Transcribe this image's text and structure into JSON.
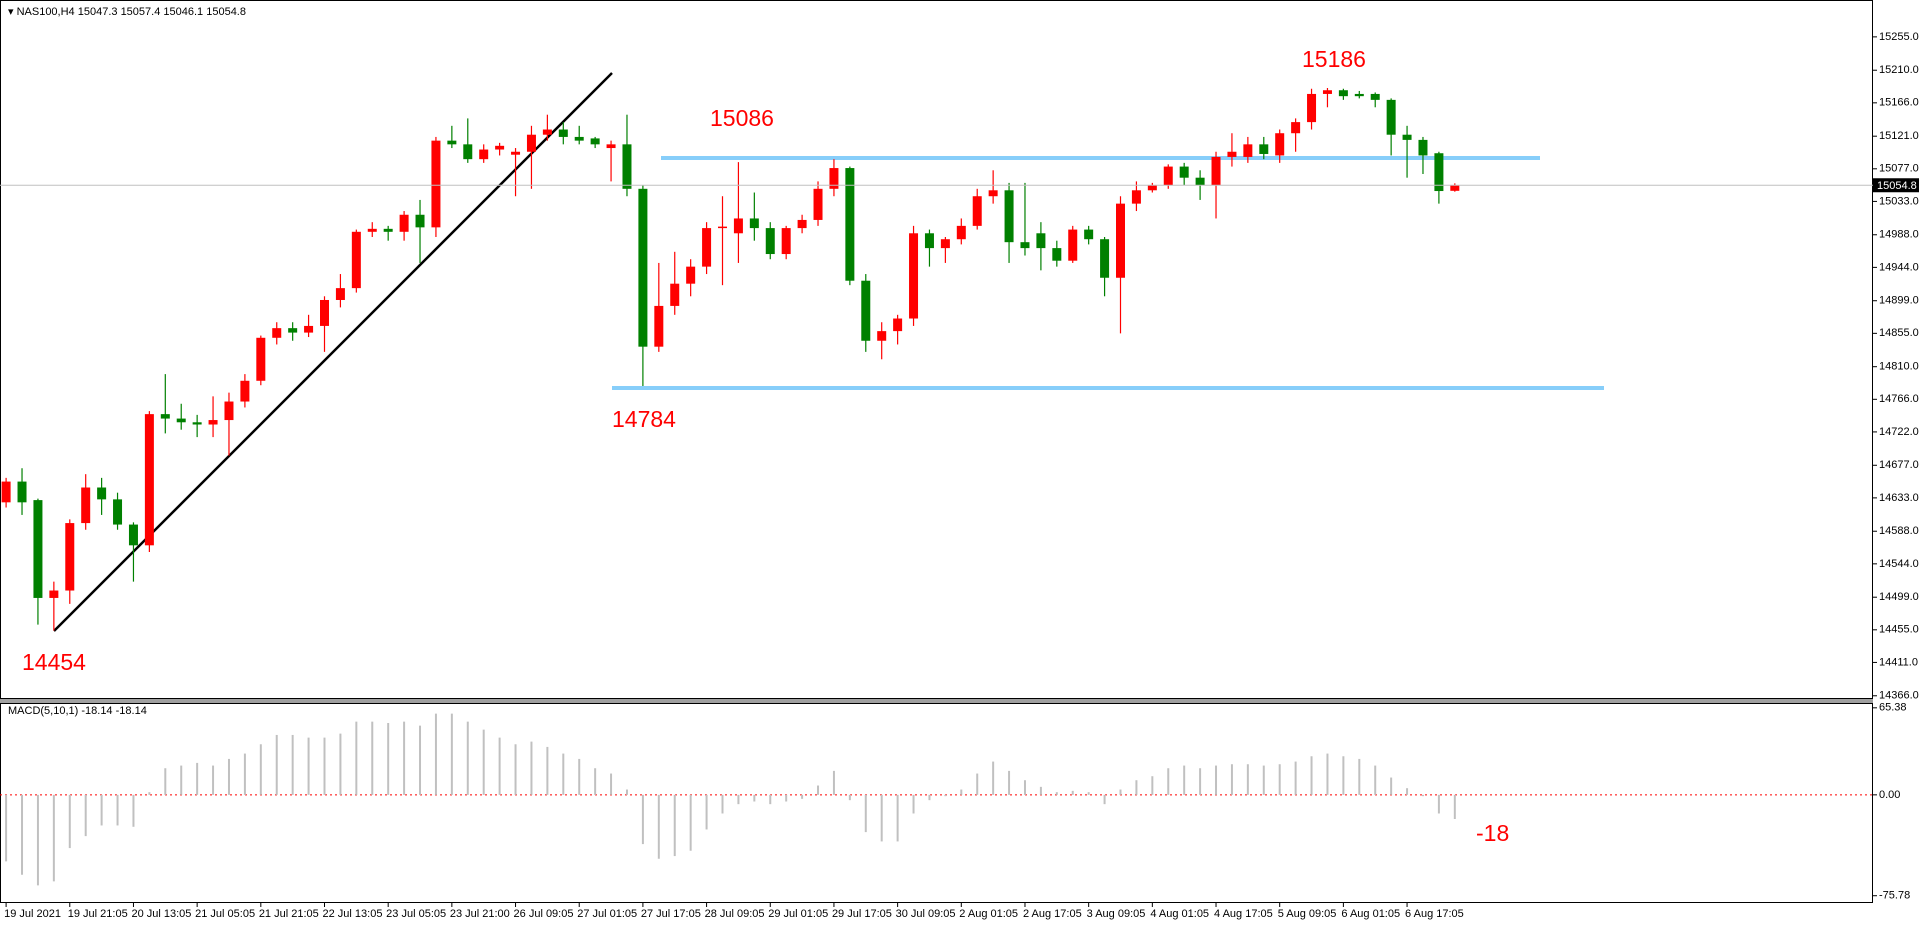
{
  "chart_data": [
    {
      "type": "candlestick",
      "title": "NAS100,H4",
      "up_color": "#ff0000",
      "down_color": "#008000",
      "categories": [
        "19 Jul 2021",
        null,
        null,
        null,
        "19 Jul 21:05",
        null,
        null,
        null,
        "20 Jul 13:05",
        null,
        null,
        null,
        "21 Jul 05:05",
        null,
        null,
        null,
        "21 Jul 21:05",
        null,
        null,
        null,
        "22 Jul 13:05",
        null,
        null,
        null,
        "23 Jul 05:05",
        null,
        null,
        null,
        "23 Jul 21:00",
        null,
        null,
        null,
        "26 Jul 09:05",
        null,
        null,
        null,
        "27 Jul 01:05",
        null,
        null,
        null,
        "27 Jul 17:05",
        null,
        null,
        null,
        "28 Jul 09:05",
        null,
        null,
        null,
        "29 Jul 01:05",
        null,
        null,
        null,
        "29 Jul 17:05",
        null,
        null,
        null,
        "30 Jul 09:05",
        null,
        null,
        null,
        "2 Aug 01:05",
        null,
        null,
        null,
        "2 Aug 17:05",
        null,
        null,
        null,
        "3 Aug 09:05",
        null,
        null,
        null,
        "4 Aug 01:05",
        null,
        null,
        null,
        "4 Aug 17:05",
        null,
        null,
        null,
        "5 Aug 09:05",
        null,
        null,
        null,
        "6 Aug 01:05",
        null,
        null,
        null,
        "6 Aug 17:05",
        null,
        null,
        null
      ],
      "open": [
        14627,
        14655,
        14630,
        14498,
        14508,
        14599,
        14647,
        14631,
        14597,
        14569,
        14746,
        14740,
        14735,
        14732,
        14738,
        14763,
        14791,
        14849,
        14862,
        14856,
        14865,
        14900,
        14916,
        14992,
        14996,
        14992,
        15015,
        14998,
        15115,
        15110,
        15090,
        15103,
        15096,
        15100,
        15123,
        15130,
        15120,
        15118,
        15105,
        15110,
        15050,
        14837,
        14892,
        14922,
        14945,
        14997,
        14990,
        15010,
        14997,
        14962,
        14997,
        15008,
        15050,
        15078,
        14926,
        14845,
        14858,
        14875,
        14990,
        14970,
        14982,
        15000,
        15040,
        15048,
        14978,
        14990,
        14970,
        14953,
        14995,
        14982,
        14930,
        15030,
        15048,
        15055,
        15080,
        15065,
        15055,
        15093,
        15093,
        15110,
        15095,
        15125,
        15140,
        15178,
        15183,
        15178,
        15178,
        15170,
        15123,
        15116,
        15098,
        15047.3
      ],
      "high": [
        14660,
        14673,
        14632,
        14520,
        14604,
        14665,
        14660,
        14640,
        14600,
        14750,
        14800,
        14760,
        14745,
        14770,
        14775,
        14800,
        14852,
        14870,
        14870,
        14880,
        14905,
        14935,
        14995,
        15005,
        15000,
        15020,
        15035,
        15120,
        15135,
        15145,
        15110,
        15112,
        15105,
        15135,
        15150,
        15140,
        15135,
        15120,
        15115,
        15150,
        15055,
        14950,
        14965,
        14955,
        15005,
        15040,
        15086,
        15045,
        15005,
        15000,
        15015,
        15060,
        15090,
        15080,
        14935,
        14870,
        14880,
        15000,
        14995,
        14985,
        15010,
        15050,
        15075,
        15058,
        15058,
        15005,
        14980,
        15000,
        15000,
        14985,
        15040,
        15060,
        15058,
        15083,
        15085,
        15075,
        15100,
        15125,
        15120,
        15120,
        15130,
        15145,
        15185,
        15186,
        15185,
        15182,
        15180,
        15172,
        15135,
        15120,
        15100,
        15057.4
      ],
      "low": [
        14620,
        14610,
        14462,
        14454,
        14490,
        14590,
        14610,
        14590,
        14520,
        14560,
        14720,
        14725,
        14715,
        14715,
        14690,
        14755,
        14785,
        14840,
        14845,
        14850,
        14830,
        14890,
        14910,
        14985,
        14980,
        14980,
        14950,
        14985,
        15105,
        15085,
        15085,
        15095,
        15040,
        15050,
        15115,
        15110,
        15110,
        15105,
        15060,
        15040,
        14784,
        14830,
        14880,
        14905,
        14935,
        14920,
        14950,
        14980,
        14955,
        14955,
        14990,
        15000,
        15040,
        14920,
        14830,
        14820,
        14840,
        14865,
        14945,
        14950,
        14975,
        14995,
        15030,
        14950,
        14960,
        14940,
        14945,
        14950,
        14975,
        14905,
        14855,
        15020,
        15045,
        15050,
        15055,
        15035,
        15010,
        15080,
        15085,
        15090,
        15085,
        15100,
        15130,
        15160,
        15170,
        15172,
        15160,
        15095,
        15065,
        15070,
        15030,
        15046.1
      ],
      "close": [
        14655,
        14627,
        14498,
        14508,
        14599,
        14647,
        14631,
        14597,
        14569,
        14746,
        14740,
        14735,
        14732,
        14738,
        14763,
        14791,
        14849,
        14862,
        14856,
        14865,
        14900,
        14916,
        14992,
        14996,
        14992,
        15015,
        14998,
        15115,
        15110,
        15090,
        15103,
        15108,
        15100,
        15123,
        15130,
        15120,
        15115,
        15110,
        15110,
        15050,
        14837,
        14892,
        14922,
        14945,
        14997,
        14999,
        15010,
        14997,
        14962,
        14997,
        15008,
        15050,
        15078,
        14926,
        14845,
        14858,
        14875,
        14990,
        14970,
        14982,
        15000,
        15040,
        15048,
        14978,
        14970,
        14970,
        14953,
        14995,
        14982,
        14930,
        15030,
        15048,
        15055,
        15080,
        15065,
        15055,
        15093,
        15100,
        15110,
        15097,
        15125,
        15140,
        15178,
        15183,
        15175,
        15175,
        15170,
        15123,
        15116,
        15095,
        15047,
        15054.8
      ],
      "ylim": [
        14363,
        15298
      ],
      "yticks": [
        {
          "value": 15255,
          "label": "15255.0"
        },
        {
          "value": 15210,
          "label": "15210.0"
        },
        {
          "value": 15166,
          "label": "15166.0"
        },
        {
          "value": 15121,
          "label": "15121.0"
        },
        {
          "value": 15077,
          "label": "15077.0"
        },
        {
          "value": 15033,
          "label": "15033.0"
        },
        {
          "value": 14988,
          "label": "14988.0"
        },
        {
          "value": 14944,
          "label": "14944.0"
        },
        {
          "value": 14899,
          "label": "14899.0"
        },
        {
          "value": 14855,
          "label": "14855.0"
        },
        {
          "value": 14810,
          "label": "14810.0"
        },
        {
          "value": 14766,
          "label": "14766.0"
        },
        {
          "value": 14722,
          "label": "14722.0"
        },
        {
          "value": 14677,
          "label": "14677.0"
        },
        {
          "value": 14633,
          "label": "14633.0"
        },
        {
          "value": 14588,
          "label": "14588.0"
        },
        {
          "value": 14544,
          "label": "14544.0"
        },
        {
          "value": 14499,
          "label": "14499.0"
        },
        {
          "value": 14455,
          "label": "14455.0"
        },
        {
          "value": 14411,
          "label": "14411.0"
        },
        {
          "value": 14366,
          "label": "14366.0"
        }
      ],
      "annotations": [
        "14454",
        "15086",
        "14784",
        "15186"
      ]
    },
    {
      "type": "bar",
      "title": "MACD(5,10,1)",
      "color": "#c0c0c0",
      "values": [
        -50,
        -60,
        -68,
        -65,
        -40,
        -31,
        -23,
        -23,
        -24,
        2,
        20,
        22,
        24,
        22,
        27,
        31,
        38,
        45,
        45,
        43,
        43,
        46,
        55,
        55,
        54,
        55,
        52,
        61,
        61,
        55,
        49,
        43,
        38,
        40,
        36,
        31,
        27,
        20,
        16,
        4,
        -37,
        -48,
        -46,
        -42,
        -26,
        -14,
        -7,
        -5,
        -7,
        -5,
        -3,
        7,
        18,
        -4,
        -28,
        -35,
        -35,
        -14,
        -4,
        -1,
        4,
        16,
        25,
        18,
        11,
        6,
        2,
        3,
        2,
        -7,
        4,
        11,
        14,
        20,
        22,
        20,
        22,
        23,
        23,
        22,
        23,
        25,
        29,
        31,
        29,
        27,
        22,
        13,
        5,
        -1,
        -14,
        -18.14
      ],
      "ylim": [
        -80.5,
        69
      ],
      "yticks": [
        65.38,
        {
          "value": 0,
          "label": "0.00"
        },
        -75.78
      ],
      "annotations": [
        "-18"
      ]
    }
  ]
}
